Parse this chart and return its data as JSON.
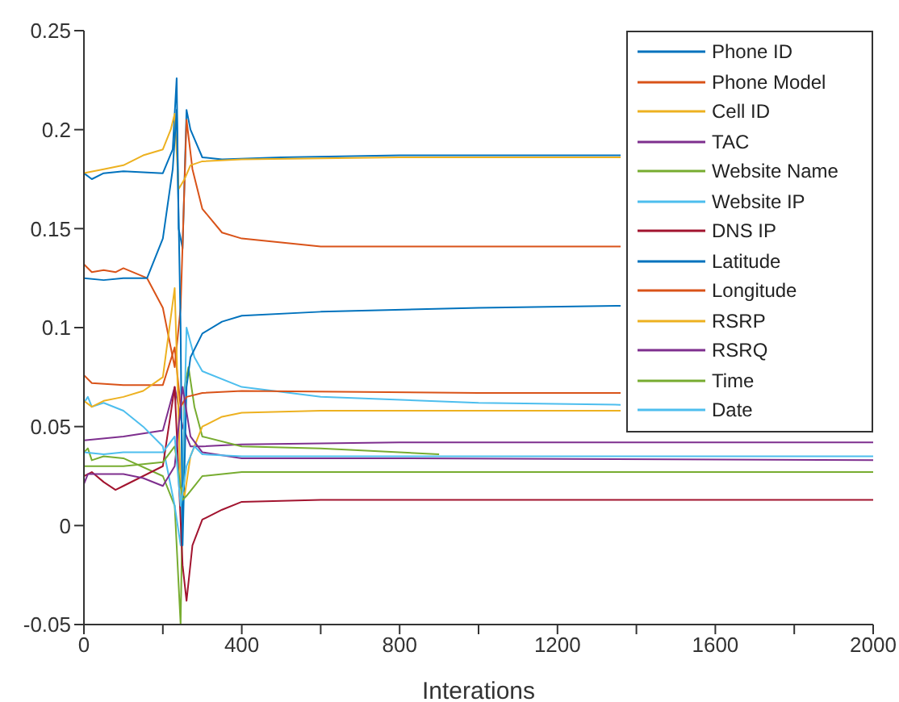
{
  "chart_data": {
    "type": "line",
    "xlabel": "Interations",
    "xlim": [
      0,
      2000
    ],
    "xticks": [
      0,
      {
        "value": 200,
        "label": null
      },
      400,
      {
        "value": 600,
        "label": null
      },
      800,
      {
        "value": 1000,
        "label": null
      },
      1200,
      {
        "value": 1400,
        "label": null
      },
      1600,
      {
        "value": 1800,
        "label": null
      },
      2000
    ],
    "ylim": [
      -0.05,
      0.25
    ],
    "yticks": [
      -0.05,
      0,
      0.05,
      0.1,
      0.15,
      0.2,
      0.25
    ],
    "grid": false,
    "legend": "top right",
    "marker": "none",
    "line_style": "solid",
    "series": [
      {
        "name": "Phone ID",
        "color": "#0072bd",
        "x": [
          0,
          20,
          50,
          100,
          200,
          225,
          235,
          240,
          250,
          260,
          270,
          300,
          350,
          500,
          800,
          1360
        ],
        "values": [
          0.178,
          0.175,
          0.178,
          0.179,
          0.178,
          0.19,
          0.226,
          0.15,
          0.14,
          0.21,
          0.2,
          0.186,
          0.185,
          0.186,
          0.187,
          0.187
        ]
      },
      {
        "name": "Phone Model",
        "color": "#d95319",
        "x": [
          0,
          20,
          50,
          80,
          100,
          160,
          200,
          230,
          245,
          260,
          275,
          300,
          350,
          400,
          600,
          1000,
          1360
        ],
        "values": [
          0.132,
          0.128,
          0.129,
          0.128,
          0.13,
          0.125,
          0.11,
          0.08,
          0.11,
          0.205,
          0.18,
          0.16,
          0.148,
          0.145,
          0.141,
          0.141,
          0.141
        ]
      },
      {
        "name": "Cell ID",
        "color": "#edb120",
        "x": [
          0,
          50,
          100,
          150,
          200,
          220,
          230,
          240,
          255,
          270,
          300,
          400,
          800,
          1360
        ],
        "values": [
          0.178,
          0.18,
          0.182,
          0.187,
          0.19,
          0.2,
          0.208,
          0.17,
          0.175,
          0.182,
          0.184,
          0.185,
          0.186,
          0.186
        ]
      },
      {
        "name": "TAC",
        "color": "#7e2f8e",
        "x": [
          0,
          100,
          200,
          230,
          250,
          270,
          300,
          400,
          800,
          2000
        ],
        "values": [
          0.043,
          0.045,
          0.048,
          0.07,
          0.05,
          0.04,
          0.04,
          0.041,
          0.042,
          0.042
        ]
      },
      {
        "name": "Website Name",
        "color": "#77ac30",
        "x": [
          0,
          10,
          20,
          50,
          100,
          200,
          230,
          245,
          255,
          265,
          280,
          300,
          400,
          600,
          900
        ],
        "values": [
          0.037,
          0.039,
          0.033,
          0.035,
          0.034,
          0.025,
          0.01,
          -0.05,
          0.07,
          0.08,
          0.06,
          0.045,
          0.04,
          0.039,
          0.036
        ]
      },
      {
        "name": "Website IP",
        "color": "#4dbeee",
        "x": [
          0,
          10,
          20,
          50,
          100,
          150,
          200,
          230,
          245,
          255,
          260,
          280,
          300,
          400,
          600,
          1000,
          1360
        ],
        "values": [
          0.062,
          0.065,
          0.06,
          0.062,
          0.058,
          0.05,
          0.04,
          0.01,
          -0.01,
          0.06,
          0.1,
          0.085,
          0.078,
          0.07,
          0.065,
          0.062,
          0.061
        ]
      },
      {
        "name": "DNS IP",
        "color": "#a2142f",
        "x": [
          0,
          20,
          50,
          80,
          100,
          150,
          200,
          230,
          250,
          260,
          275,
          300,
          350,
          400,
          600,
          2000
        ],
        "values": [
          0.025,
          0.027,
          0.022,
          0.018,
          0.02,
          0.025,
          0.03,
          0.07,
          -0.02,
          -0.038,
          -0.01,
          0.003,
          0.008,
          0.012,
          0.013,
          0.013
        ]
      },
      {
        "name": "Latitude",
        "color": "#0072bd",
        "x": [
          0,
          50,
          100,
          160,
          200,
          225,
          235,
          245,
          250,
          260,
          270,
          300,
          350,
          400,
          600,
          1000,
          1360
        ],
        "values": [
          0.125,
          0.124,
          0.125,
          0.125,
          0.145,
          0.18,
          0.21,
          0.1,
          -0.01,
          0.07,
          0.085,
          0.097,
          0.103,
          0.106,
          0.108,
          0.11,
          0.111
        ]
      },
      {
        "name": "Longitude",
        "color": "#d95319",
        "x": [
          0,
          20,
          100,
          200,
          230,
          245,
          260,
          300,
          400,
          1000,
          1360
        ],
        "values": [
          0.076,
          0.072,
          0.071,
          0.071,
          0.09,
          0.06,
          0.065,
          0.067,
          0.068,
          0.067,
          0.067
        ]
      },
      {
        "name": "RSRP",
        "color": "#edb120",
        "x": [
          0,
          20,
          50,
          100,
          150,
          200,
          230,
          245,
          255,
          270,
          300,
          350,
          400,
          600,
          1360
        ],
        "values": [
          0.063,
          0.06,
          0.063,
          0.065,
          0.068,
          0.075,
          0.12,
          0.02,
          0.015,
          0.035,
          0.05,
          0.055,
          0.057,
          0.058,
          0.058
        ]
      },
      {
        "name": "RSRQ",
        "color": "#7e2f8e",
        "x": [
          0,
          10,
          50,
          100,
          150,
          200,
          230,
          250,
          270,
          300,
          400,
          800,
          2000
        ],
        "values": [
          0.021,
          0.026,
          0.026,
          0.026,
          0.024,
          0.02,
          0.03,
          0.07,
          0.045,
          0.037,
          0.034,
          0.034,
          0.033
        ]
      },
      {
        "name": "Time",
        "color": "#77ac30",
        "x": [
          0,
          20,
          100,
          200,
          230,
          250,
          260,
          280,
          300,
          400,
          2000
        ],
        "values": [
          0.03,
          0.03,
          0.03,
          0.032,
          0.04,
          0.013,
          0.015,
          0.02,
          0.025,
          0.027,
          0.027
        ]
      },
      {
        "name": "Date",
        "color": "#4dbeee",
        "x": [
          0,
          50,
          100,
          200,
          230,
          245,
          260,
          280,
          300,
          400,
          2000
        ],
        "values": [
          0.037,
          0.036,
          0.037,
          0.037,
          0.045,
          0.01,
          0.03,
          0.04,
          0.036,
          0.035,
          0.035
        ]
      }
    ]
  }
}
